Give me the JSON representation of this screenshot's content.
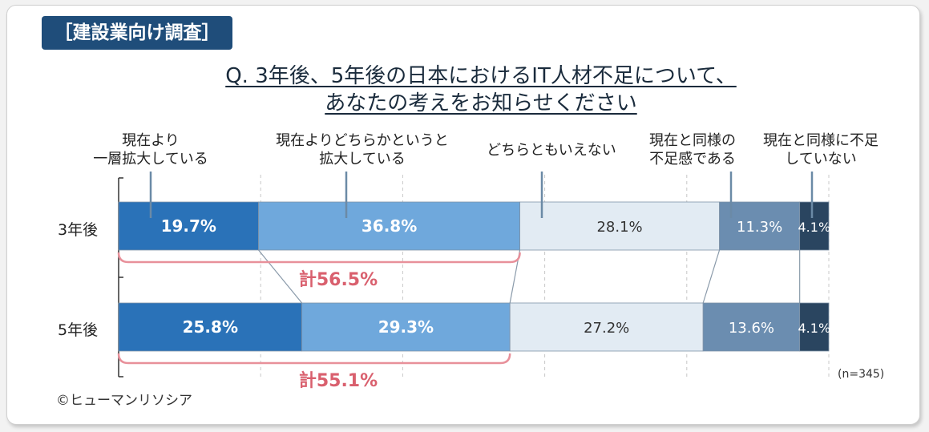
{
  "header": {
    "tag": "［建設業向け調査］",
    "title_line1": "Q. 3年後、5年後の日本におけるIT人材不足について、",
    "title_line2": "あなたの考えをお知らせください"
  },
  "chart_data": {
    "type": "bar",
    "orientation": "horizontal-stacked-100",
    "categories": [
      "3年後",
      "5年後"
    ],
    "series": [
      {
        "name": "現在より一層拡大している",
        "label_lines": [
          "現在より",
          "一層拡大している"
        ],
        "values": [
          19.7,
          25.8
        ],
        "color": "#2a72b8"
      },
      {
        "name": "現在よりどちらかというと拡大している",
        "label_lines": [
          "現在よりどちらかというと",
          "拡大している"
        ],
        "values": [
          36.8,
          29.3
        ],
        "color": "#6fa8dc"
      },
      {
        "name": "どちらともいえない",
        "label_lines": [
          "どちらともいえない"
        ],
        "values": [
          28.1,
          27.2
        ],
        "color": "#e2ebf3"
      },
      {
        "name": "現在と同様の不足感である",
        "label_lines": [
          "現在と同様の",
          "不足感である"
        ],
        "values": [
          11.3,
          13.6
        ],
        "color": "#6b8db0"
      },
      {
        "name": "現在と同様に不足していない",
        "label_lines": [
          "現在と同様に不足",
          "していない"
        ],
        "values": [
          4.1,
          4.1
        ],
        "color": "#2a4560"
      }
    ],
    "value_labels": [
      [
        "19.7%",
        "36.8%",
        "28.1%",
        "11.3%",
        "4.1%"
      ],
      [
        "25.8%",
        "29.3%",
        "27.2%",
        "13.6%",
        "4.1%"
      ]
    ],
    "totals": [
      "計56.5%",
      "計55.1%"
    ],
    "xlim": [
      0,
      100
    ],
    "grid": true,
    "note": "(n=345)"
  },
  "footer": {
    "source": "©ヒューマンリソシア"
  }
}
